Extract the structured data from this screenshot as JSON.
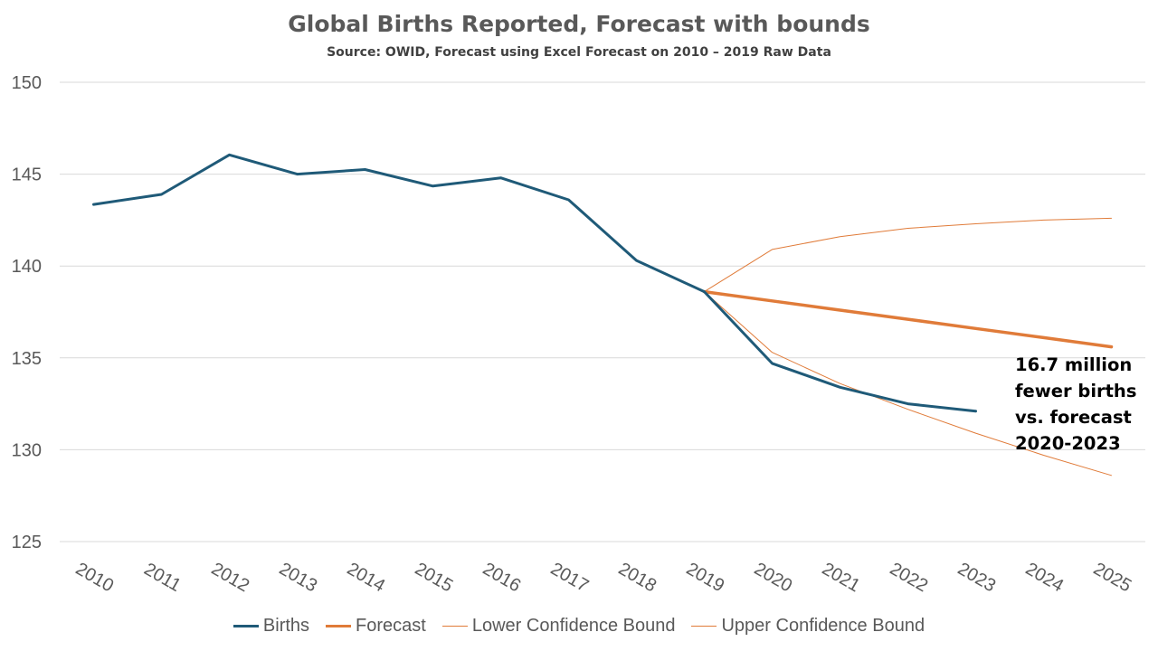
{
  "chart_data": {
    "type": "line",
    "title": "Global Births Reported, Forecast with bounds",
    "subtitle": "Source: OWID, Forecast using Excel Forecast on 2010 – 2019 Raw Data",
    "xlabel": "",
    "ylabel": "",
    "ylim": [
      125,
      150
    ],
    "yticks": [
      125,
      130,
      135,
      140,
      145,
      150
    ],
    "grid": true,
    "legend_position": "bottom",
    "x": [
      "2010",
      "2011",
      "2012",
      "2013",
      "2014",
      "2015",
      "2016",
      "2017",
      "2018",
      "2019",
      "2020",
      "2021",
      "2022",
      "2023",
      "2024",
      "2025"
    ],
    "series": [
      {
        "name": "Births",
        "color": "#1f5a78",
        "width": 3,
        "values": [
          143.35,
          143.9,
          146.05,
          145.0,
          145.25,
          144.35,
          144.8,
          143.6,
          140.3,
          138.6,
          134.7,
          133.4,
          132.5,
          132.1,
          null,
          null
        ]
      },
      {
        "name": "Forecast",
        "color": "#e07b39",
        "width": 3.5,
        "values": [
          null,
          null,
          null,
          null,
          null,
          null,
          null,
          null,
          null,
          138.6,
          138.1,
          137.6,
          137.1,
          136.6,
          136.1,
          135.6
        ]
      },
      {
        "name": "Lower Confidence Bound",
        "color": "#e07b39",
        "width": 1,
        "values": [
          null,
          null,
          null,
          null,
          null,
          null,
          null,
          null,
          null,
          138.6,
          135.3,
          133.6,
          132.2,
          130.9,
          129.7,
          128.6
        ]
      },
      {
        "name": "Upper Confidence Bound",
        "color": "#e07b39",
        "width": 1,
        "values": [
          null,
          null,
          null,
          null,
          null,
          null,
          null,
          null,
          null,
          138.6,
          140.9,
          141.6,
          142.05,
          142.3,
          142.5,
          142.6
        ]
      }
    ],
    "annotation": "16.7 million\nfewer births\nvs. forecast\n2020-2023"
  }
}
